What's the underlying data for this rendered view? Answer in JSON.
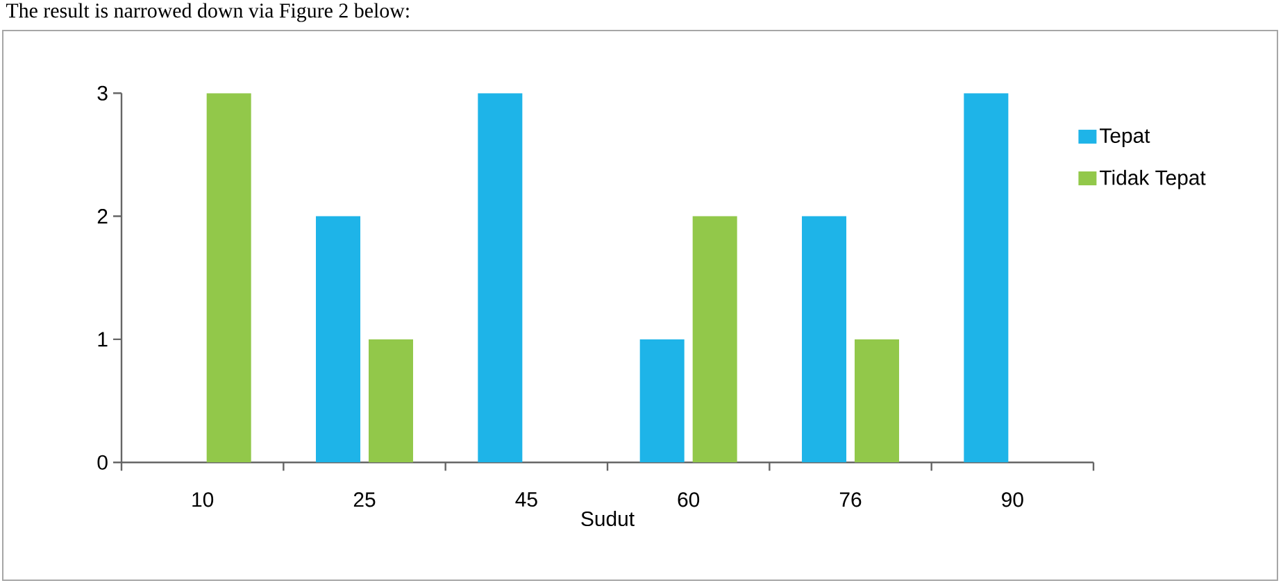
{
  "chart_data": {
    "type": "bar",
    "xlabel": "Sudut",
    "categories": [
      "10",
      "25",
      "45",
      "60",
      "76",
      "90"
    ],
    "series": [
      {
        "name": "Tepat",
        "color": "#1eb4e8",
        "values": [
          0,
          2,
          3,
          1,
          2,
          3
        ]
      },
      {
        "name": "Tidak Tepat",
        "color": "#92c84a",
        "values": [
          3,
          1,
          0,
          2,
          1,
          0
        ]
      }
    ],
    "ylim": [
      0,
      3
    ],
    "yticks": [
      0,
      1,
      2,
      3
    ],
    "legend": "right",
    "annotations": [
      "The result is narrowed down via Figure 2 below:"
    ]
  }
}
